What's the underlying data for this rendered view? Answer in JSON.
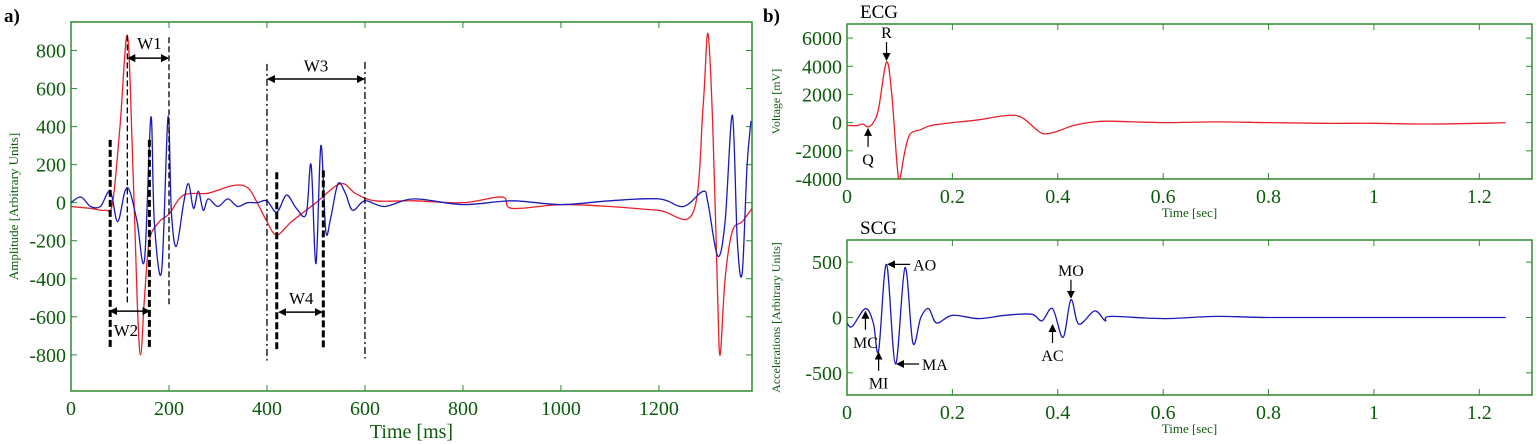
{
  "colors": {
    "ecg": "#e8202a",
    "scg": "#1a1ab8",
    "axis": "#2e8b2e",
    "tick_text": "#0d5c0d",
    "annotation": "#000000"
  },
  "chart_data": [
    {
      "panel_label": "a)",
      "type": "line",
      "title": "",
      "xlabel": "Time [ms]",
      "ylabel": "Amplitude [Arbitrary Units]",
      "xlim": [
        0,
        1390
      ],
      "ylim": [
        -990,
        950
      ],
      "xticks": [
        0,
        200,
        400,
        600,
        800,
        1000,
        1200
      ],
      "yticks": [
        800,
        600,
        400,
        200,
        0,
        -200,
        -400,
        -600,
        -800
      ],
      "grid": false,
      "series": [
        {
          "color_key": "ecg",
          "x": [
            0,
            40,
            70,
            85,
            100,
            115,
            125,
            135,
            142,
            150,
            160,
            180,
            200,
            230,
            280,
            330,
            360,
            380,
            400,
            420,
            450,
            500,
            550,
            580,
            620,
            700,
            800,
            880,
            900,
            1000,
            1100,
            1200,
            1270,
            1290,
            1300,
            1310,
            1320,
            1325,
            1335,
            1350,
            1370,
            1390
          ],
          "y": [
            -20,
            -30,
            -40,
            0,
            400,
            880,
            300,
            -500,
            -800,
            -500,
            -200,
            -100,
            -60,
            40,
            50,
            90,
            80,
            0,
            -100,
            -170,
            -100,
            0,
            100,
            50,
            10,
            10,
            0,
            30,
            -30,
            -10,
            -20,
            -40,
            -50,
            500,
            890,
            400,
            -500,
            -800,
            -400,
            -150,
            -100,
            -30
          ]
        },
        {
          "color_key": "scg",
          "x": [
            0,
            20,
            40,
            60,
            80,
            95,
            110,
            120,
            135,
            150,
            163,
            170,
            185,
            198,
            205,
            215,
            230,
            240,
            250,
            260,
            270,
            280,
            300,
            320,
            340,
            360,
            380,
            400,
            420,
            440,
            460,
            480,
            490,
            500,
            510,
            520,
            530,
            545,
            560,
            575,
            600,
            640,
            700,
            800,
            900,
            1000,
            1100,
            1200,
            1250,
            1290,
            1300,
            1320,
            1335,
            1350,
            1360,
            1370,
            1380,
            1388
          ],
          "y": [
            0,
            30,
            -20,
            -20,
            60,
            -100,
            60,
            60,
            -100,
            -300,
            450,
            -100,
            -360,
            450,
            -50,
            -230,
            0,
            100,
            -30,
            60,
            -40,
            20,
            -20,
            20,
            -20,
            0,
            0,
            10,
            -50,
            40,
            -30,
            -60,
            200,
            -320,
            300,
            -150,
            -80,
            100,
            50,
            -40,
            10,
            -20,
            20,
            -10,
            10,
            -10,
            10,
            20,
            -20,
            60,
            0,
            -280,
            -100,
            460,
            -200,
            -370,
            200,
            430
          ]
        }
      ],
      "annotations": [
        {
          "label": "W1",
          "style": "dashed",
          "lines": [
            {
              "x": 115,
              "y": [
                880,
                -540
              ]
            },
            {
              "x": 200,
              "y": [
                870,
                -540
              ]
            }
          ],
          "arrow": {
            "x": [
              117,
              198
            ],
            "y": 760
          },
          "text_at": [
            160,
            840
          ]
        },
        {
          "label": "W2",
          "style": "thick-dashed",
          "lines": [
            {
              "x": 80,
              "y": [
                330,
                -770
              ]
            },
            {
              "x": 160,
              "y": [
                330,
                -770
              ]
            }
          ],
          "arrow": {
            "x": [
              80,
              160
            ],
            "y": -570
          },
          "text_at": [
            112,
            -670
          ]
        },
        {
          "label": "W3",
          "style": "dash-dot",
          "lines": [
            {
              "x": 400,
              "y": [
                730,
                -830
              ]
            },
            {
              "x": 600,
              "y": [
                740,
                -820
              ]
            }
          ],
          "arrow": {
            "x": [
              402,
              598
            ],
            "y": 650
          },
          "text_at": [
            500,
            720
          ]
        },
        {
          "label": "W4",
          "style": "thick-dashed",
          "lines": [
            {
              "x": 420,
              "y": [
                160,
                -770
              ]
            },
            {
              "x": 515,
              "y": [
                170,
                -770
              ]
            }
          ],
          "arrow": {
            "x": [
              425,
              512
            ],
            "y": -575
          },
          "text_at": [
            470,
            -500
          ]
        }
      ]
    },
    {
      "panel_label": "b)",
      "type": "line",
      "title": "ECG",
      "xlabel": "Time [sec]",
      "ylabel": "Voltage  [mV]",
      "xlim": [
        0,
        1.3
      ],
      "ylim": [
        -4000,
        7000
      ],
      "xticks": [
        0,
        0.2,
        0.4,
        0.6,
        0.8,
        1,
        1.2
      ],
      "yticks": [
        6000,
        4000,
        2000,
        0,
        -2000,
        -4000
      ],
      "grid": false,
      "series": [
        {
          "color_key": "ecg",
          "x": [
            0,
            0.02,
            0.03,
            0.04,
            0.05,
            0.06,
            0.075,
            0.085,
            0.095,
            0.1,
            0.11,
            0.12,
            0.14,
            0.16,
            0.2,
            0.25,
            0.3,
            0.33,
            0.36,
            0.375,
            0.4,
            0.43,
            0.47,
            0.5,
            0.6,
            0.7,
            0.8,
            0.9,
            1.0,
            1.1,
            1.2,
            1.25
          ],
          "y": [
            -200,
            -200,
            -100,
            -300,
            0,
            1000,
            4300,
            2000,
            -3000,
            -4000,
            -2000,
            -800,
            -500,
            -200,
            0,
            200,
            500,
            400,
            -500,
            -800,
            -600,
            -200,
            50,
            100,
            0,
            50,
            0,
            -50,
            -50,
            -100,
            -50,
            0
          ]
        }
      ],
      "point_labels": [
        {
          "label": "R",
          "point": [
            0.075,
            4300
          ],
          "from": "above"
        },
        {
          "label": "Q",
          "point": [
            0.04,
            -300
          ],
          "from": "below"
        }
      ]
    },
    {
      "type": "line",
      "title": "SCG",
      "xlabel": "Time [sec]",
      "ylabel": "Accelerations [Arbitrary Units]",
      "xlim": [
        0,
        1.3
      ],
      "ylim": [
        -700,
        700
      ],
      "xticks": [
        0,
        0.2,
        0.4,
        0.6,
        0.8,
        1,
        1.2
      ],
      "yticks": [
        500,
        0,
        -500
      ],
      "grid": false,
      "series": [
        {
          "color_key": "scg",
          "x": [
            0,
            0.01,
            0.035,
            0.05,
            0.06,
            0.075,
            0.092,
            0.11,
            0.125,
            0.14,
            0.155,
            0.17,
            0.2,
            0.25,
            0.3,
            0.35,
            0.37,
            0.39,
            0.41,
            0.425,
            0.44,
            0.47,
            0.49,
            0.5,
            0.6,
            0.7,
            0.8,
            1.0,
            1.25
          ],
          "y": [
            -50,
            -80,
            80,
            -50,
            -300,
            480,
            -420,
            450,
            -230,
            0,
            80,
            -50,
            20,
            -10,
            20,
            30,
            -30,
            80,
            -180,
            160,
            -60,
            60,
            -30,
            10,
            -10,
            10,
            0,
            0,
            0
          ]
        }
      ],
      "point_labels": [
        {
          "label": "MC",
          "point": [
            0.035,
            70
          ],
          "from": "below"
        },
        {
          "label": "MI",
          "point": [
            0.06,
            -300
          ],
          "from": "below"
        },
        {
          "label": "AO",
          "point": [
            0.078,
            480
          ],
          "from": "right"
        },
        {
          "label": "MA",
          "point": [
            0.095,
            -420
          ],
          "from": "right"
        },
        {
          "label": "AC",
          "point": [
            0.39,
            -50
          ],
          "from": "below"
        },
        {
          "label": "MO",
          "point": [
            0.425,
            160
          ],
          "from": "above"
        }
      ]
    }
  ]
}
